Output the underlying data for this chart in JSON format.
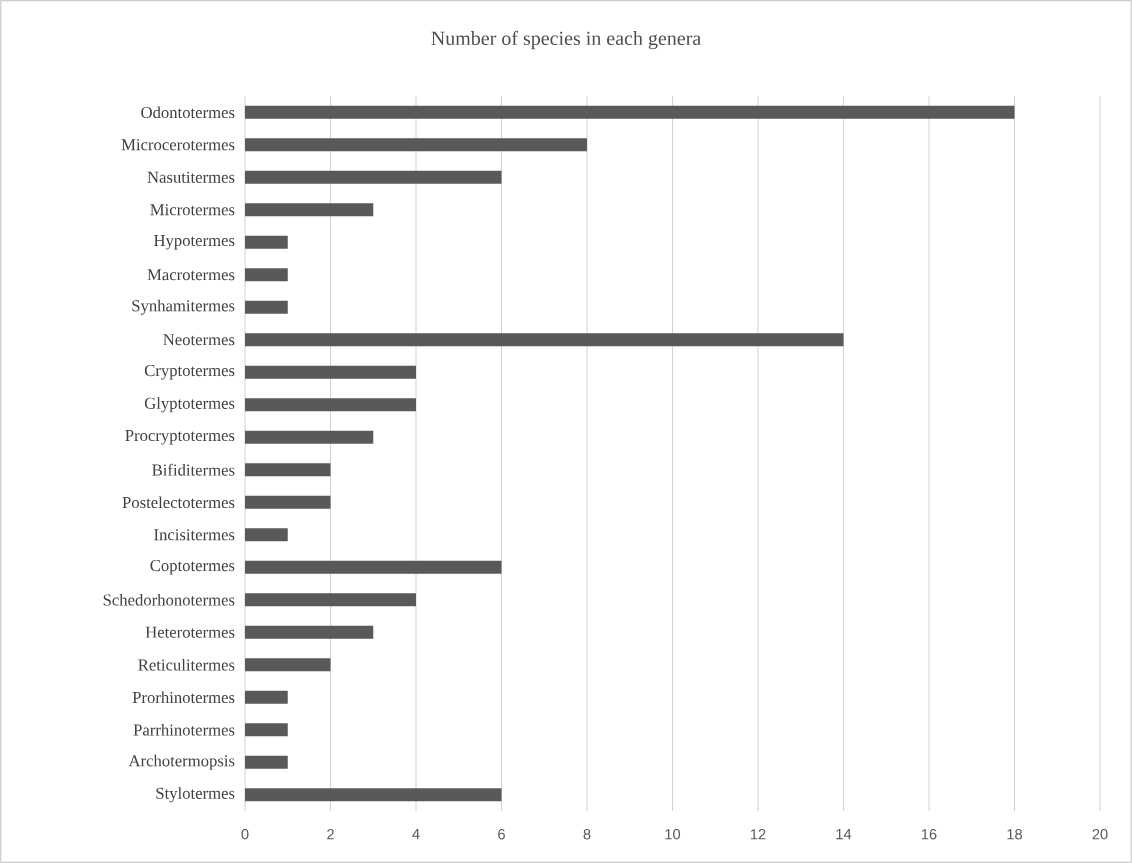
{
  "chart_data": {
    "type": "bar",
    "orientation": "horizontal",
    "title": "Number of species in each genera",
    "categories": [
      "Odontotermes",
      "Microcerotermes",
      "Nasutitermes",
      "Microtermes",
      "Hypotermes",
      "Macrotermes",
      "Synhamitermes",
      "Neotermes",
      "Cryptotermes",
      "Glyptotermes",
      "Procryptotermes",
      "Bifiditermes",
      "Postelectotermes",
      "Incisitermes",
      "Coptotermes",
      "Schedorhonotermes",
      "Heterotermes",
      "Reticulitermes",
      "Prorhinotermes",
      "Parrhinotermes",
      "Archotermopsis",
      "Stylotermes"
    ],
    "values": [
      18,
      8,
      6,
      3,
      1,
      1,
      1,
      14,
      4,
      4,
      3,
      2,
      2,
      1,
      6,
      4,
      3,
      2,
      1,
      1,
      1,
      6
    ],
    "color": "#595959",
    "xlim": [
      0,
      20
    ],
    "xticks": [
      0,
      2,
      4,
      6,
      8,
      10,
      12,
      14,
      16,
      18,
      20
    ],
    "grid": "x"
  }
}
